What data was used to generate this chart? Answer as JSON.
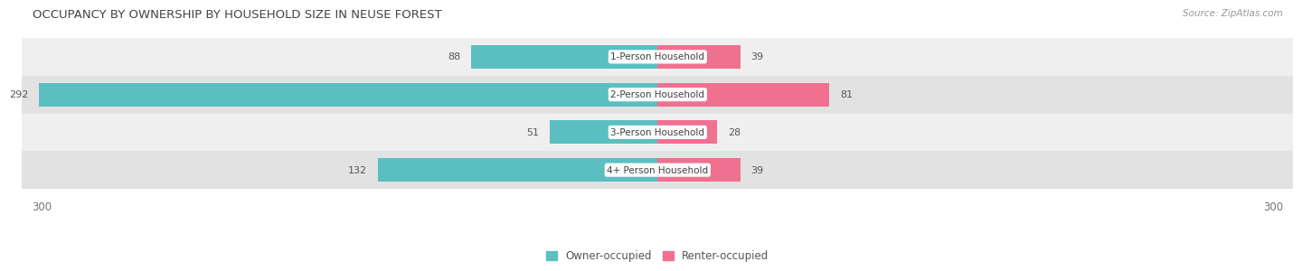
{
  "title": "OCCUPANCY BY OWNERSHIP BY HOUSEHOLD SIZE IN NEUSE FOREST",
  "source": "Source: ZipAtlas.com",
  "categories": [
    "1-Person Household",
    "2-Person Household",
    "3-Person Household",
    "4+ Person Household"
  ],
  "owner_values": [
    88,
    292,
    51,
    132
  ],
  "renter_values": [
    39,
    81,
    28,
    39
  ],
  "owner_color": "#5bbfc2",
  "renter_color": "#f07090",
  "row_bg_colors": [
    "#efefef",
    "#e2e2e2",
    "#efefef",
    "#e2e2e2"
  ],
  "axis_max": 300,
  "title_fontsize": 9.5,
  "label_fontsize": 8.0,
  "tick_fontsize": 8.5,
  "legend_fontsize": 8.5,
  "source_fontsize": 7.5
}
